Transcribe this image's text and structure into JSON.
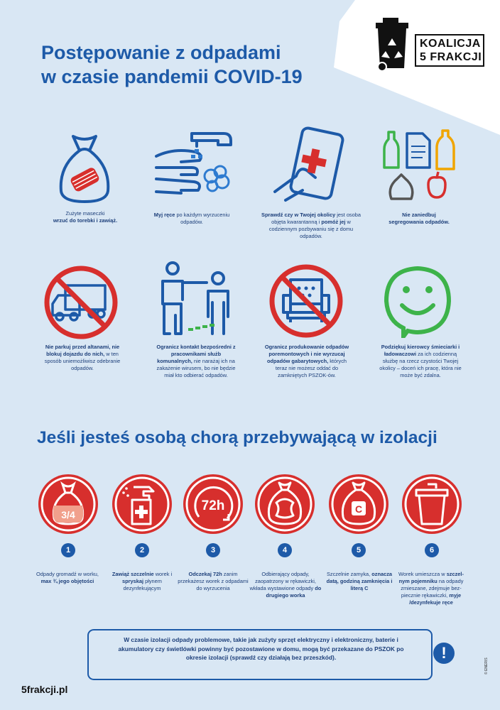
{
  "header": {
    "title_line1": "Postępowanie z odpadami",
    "title_line2": "w czasie pandemii COVID-19"
  },
  "logo": {
    "line1": "KOALICJA",
    "line2": "5 FRAKCJI",
    "icon": "trash-bin-recycle-icon"
  },
  "tips": [
    {
      "icon": "mask-in-bag-icon",
      "bold1": "",
      "text1": "Zużyte maseczki",
      "bold2": "wrzuć do torebki i zawiąż.",
      "text2": ""
    },
    {
      "icon": "wash-hands-icon",
      "bold1": "Myj ręce",
      "text1": " po każdym wyrzuceniu odpadów.",
      "bold2": "",
      "text2": ""
    },
    {
      "icon": "phone-medical-icon",
      "bold1": "Sprawdź czy w Twojej okolicy",
      "text1": " jest osoba objęta kwarantanną i ",
      "bold2": "pomóż jej",
      "text2": " w codziennym pozbywaniu się z domu odpadów."
    },
    {
      "icon": "sorted-waste-icon",
      "bold1": "Nie zaniedbuj segregowania odpadów.",
      "text1": "",
      "bold2": "",
      "text2": ""
    },
    {
      "icon": "no-parking-truck-icon",
      "bold1": "Nie parkuj przed altanami, nie blokuj dojazdu do nich,",
      "text1": " w ten sposób uniemożliwisz odebranie odpadów.",
      "bold2": "",
      "text2": ""
    },
    {
      "icon": "distance-people-icon",
      "bold1": "Ogranicz kontakt bezpośredni z pracownikami służb komunalnych,",
      "text1": " nie narażaj ich na zakażenie wirusem, bo nie będzie miał kto odbierać odpadów.",
      "bold2": "",
      "text2": ""
    },
    {
      "icon": "no-armchair-icon",
      "bold1": "Ogranicz produkowanie odpadów poremontowych i nie wyrzucaj odpadów gabarytowych,",
      "text1": " których teraz nie możesz oddać do zamkniętych PSZOK-ów.",
      "bold2": "",
      "text2": ""
    },
    {
      "icon": "smiley-icon",
      "bold1": "Podziękuj kierowcy śmieciarki i ładowaczowi",
      "text1": " za ich codzienną służbę na rzecz czystości Twojej okolicy – doceń ich pracę, która nie może być zdalna.",
      "bold2": "",
      "text2": ""
    }
  ],
  "isolation": {
    "title": "Jeśli jesteś osobą chorą przebywającą w izolacji",
    "steps": [
      {
        "num": "1",
        "icon": "bag-three-quarters-icon",
        "badge": "3/4",
        "t1": "Odpady gromadź w worku, ",
        "b1": "max ¾ jego objętości",
        "t2": "",
        "b2": "",
        "t3": ""
      },
      {
        "num": "2",
        "icon": "disinfectant-spray-icon",
        "badge": "",
        "t1": "",
        "b1": "Zawiąż szczelnie",
        "t2": " worek i ",
        "b2": "spryskaj",
        "t3": " płynem dezynfekującym"
      },
      {
        "num": "3",
        "icon": "wait-72h-icon",
        "badge": "72h",
        "t1": "",
        "b1": "Odczekaj 72h",
        "t2": " zanim przekażesz worek z odpadami do wyrzucenia",
        "b2": "",
        "t3": ""
      },
      {
        "num": "4",
        "icon": "double-bag-icon",
        "badge": "",
        "t1": "Odbierający odpady, zaopatrzony w rękawiczki, wkłada wystawione odpady ",
        "b1": "do drugiego worka",
        "t2": "",
        "b2": "",
        "t3": ""
      },
      {
        "num": "5",
        "icon": "labelled-bag-icon",
        "badge": "C",
        "t1": "Szczelnie zamyka, ",
        "b1": "oznacza datą, godziną zamknięcia i literą C",
        "t2": "",
        "b2": "",
        "t3": ""
      },
      {
        "num": "6",
        "icon": "waste-container-icon",
        "badge": "",
        "t1": "Worek umieszcza w ",
        "b1": "szczel-nym pojemniku",
        "t2": " na odpady zmieszane, zdejmuje bez-piecznie rękawiczki, ",
        "b2": "myje /dezynfekuje ręce",
        "t3": ""
      }
    ]
  },
  "notice": {
    "text": "W czasie izolacji odpady problemowe, takie jak zużyty sprzęt elektryczny i elektroniczny, baterie i akumulatory czy świetlówki powinny być pozostawione w domu, mogą być przekazane do PSZOK po okresie izolacji (sprawdź czy działają bez przeszkód).",
    "icon": "exclamation-icon",
    "mark": "!"
  },
  "footer": {
    "site": "5frakcji.pl",
    "copyright": "© ENERIS"
  },
  "colors": {
    "blue": "#1d5aa8",
    "red": "#d72f2d",
    "green": "#3db34a",
    "background": "#d9e7f4"
  }
}
